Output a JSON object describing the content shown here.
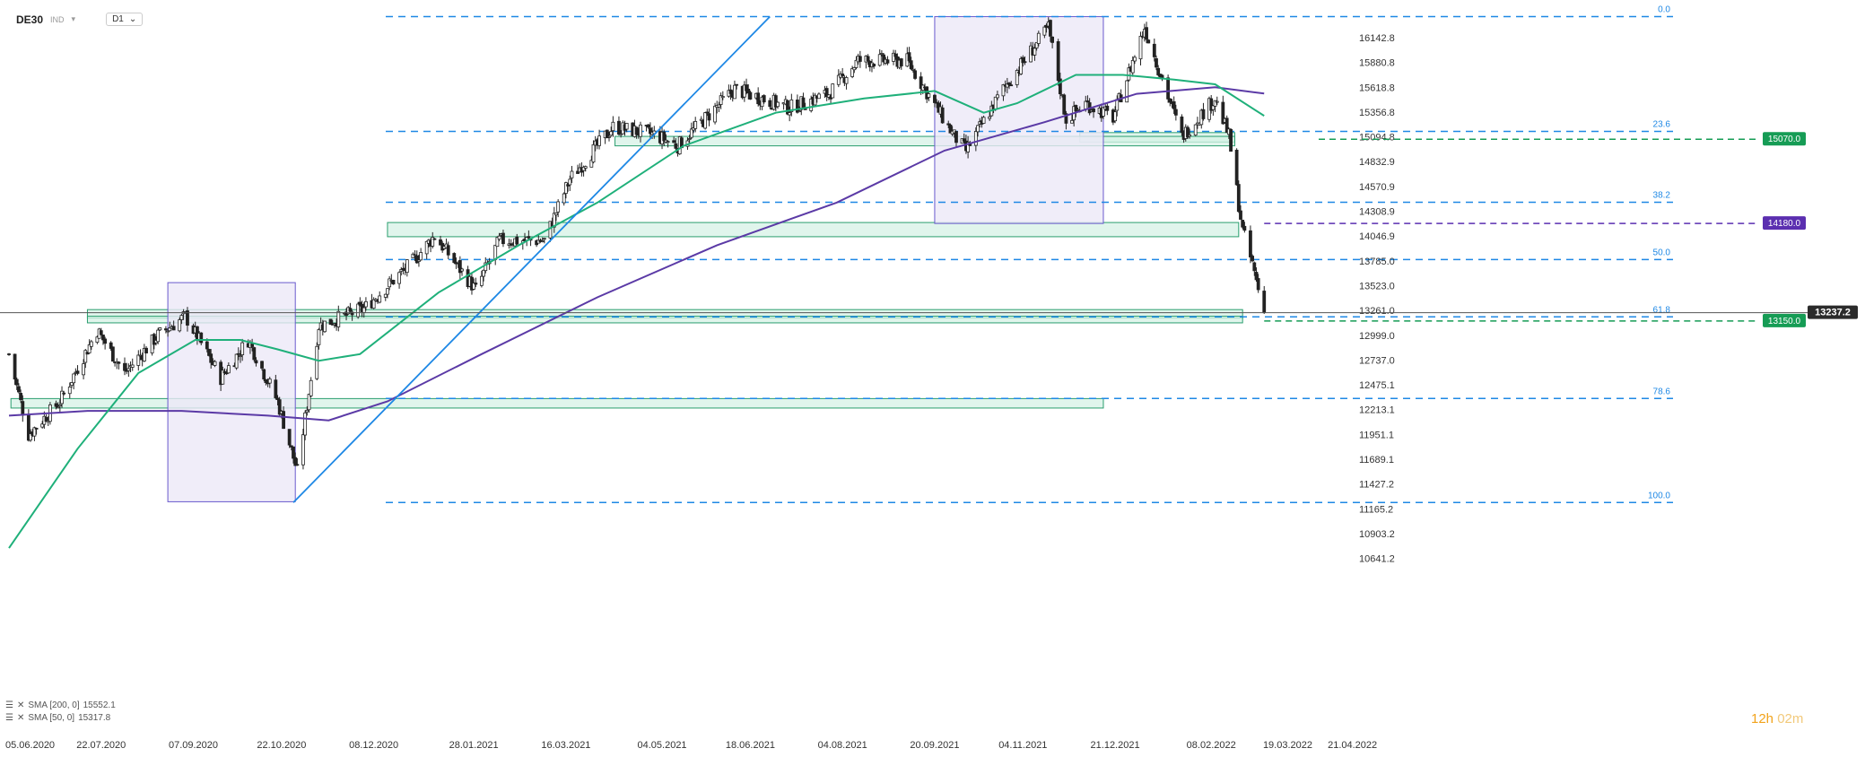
{
  "header": {
    "symbol": "DE30",
    "symbol_sub": "IND",
    "timeframe": "D1"
  },
  "legend": [
    {
      "label": "SMA [200, 0]",
      "value": "15552.1"
    },
    {
      "label": "SMA [50, 0]",
      "value": "15317.8"
    }
  ],
  "timer": {
    "hours": "12h",
    "minutes": "02m"
  },
  "colors": {
    "up": "#2e9e6e",
    "down": "#d04040",
    "sma200": "#5b3aa6",
    "sma50": "#1fb07a",
    "fib": "#1e88e5",
    "zone_fill": "#d6f2e6",
    "zone_border": "#2a9e6e",
    "box_fill": "#ece8f7",
    "box_border": "#6a5acd",
    "tag_green": "#169c55",
    "tag_purple": "#5b2fb0",
    "tag_dark": "#2b2b2b"
  },
  "chart_data": {
    "type": "candlestick",
    "yticks": [
      "16142.8",
      "15880.8",
      "15618.8",
      "15356.8",
      "15094.8",
      "14832.9",
      "14570.9",
      "14308.9",
      "14046.9",
      "13785.0",
      "13523.0",
      "13261.0",
      "12999.0",
      "12737.0",
      "12475.1",
      "12213.1",
      "11951.1",
      "11689.1",
      "11427.2",
      "11165.2",
      "10903.2",
      "10641.2"
    ],
    "xticks": [
      "05.06.2020",
      "22.07.2020",
      "07.09.2020",
      "22.10.2020",
      "08.12.2020",
      "28.01.2021",
      "16.03.2021",
      "04.05.2021",
      "18.06.2021",
      "04.08.2021",
      "20.09.2021",
      "04.11.2021",
      "21.12.2021",
      "08.02.2022",
      "19.03.2022",
      "21.04.2022"
    ],
    "fib_levels": [
      {
        "label": "0.0",
        "price": 16365
      },
      {
        "label": "23.6",
        "price": 15153
      },
      {
        "label": "38.2",
        "price": 14404
      },
      {
        "label": "50.0",
        "price": 13799
      },
      {
        "label": "61.8",
        "price": 13193
      },
      {
        "label": "78.6",
        "price": 12331
      },
      {
        "label": "100.0",
        "price": 11232
      }
    ],
    "tags": [
      {
        "label": "15070.0",
        "price": 15070.0,
        "style": "green"
      },
      {
        "label": "14180.0",
        "price": 14180.0,
        "style": "purple"
      },
      {
        "label": "13237.2",
        "price": 13237.2,
        "style": "dark"
      },
      {
        "label": "13150.0",
        "price": 13150.0,
        "style": "green"
      }
    ],
    "zones": [
      {
        "x1": "2021-12-03",
        "x2": "2022-02-20",
        "lo": 15040,
        "hi": 15140
      },
      {
        "x1": "2021-04-10",
        "x2": "2022-02-20",
        "lo": 15000,
        "hi": 15100
      },
      {
        "x1": "2020-12-15",
        "x2": "2022-02-22",
        "lo": 14040,
        "hi": 14190
      },
      {
        "x1": "2020-07-15",
        "x2": "2022-02-24",
        "lo": 13180,
        "hi": 13270
      },
      {
        "x1": "2020-07-15",
        "x2": "2022-02-24",
        "lo": 13130,
        "hi": 13200
      },
      {
        "x1": "2020-06-06",
        "x2": "2021-12-15",
        "lo": 12230,
        "hi": 12330
      }
    ],
    "boxes": [
      {
        "x1": "2020-08-25",
        "x2": "2020-10-29",
        "lo": 11240,
        "hi": 13555
      },
      {
        "x1": "2021-09-20",
        "x2": "2021-12-15",
        "lo": 14180,
        "hi": 16365
      }
    ],
    "trendline": [
      {
        "date": "2020-10-28",
        "price": 11232
      },
      {
        "date": "2021-06-28",
        "price": 16365
      }
    ],
    "candles_summary": [
      {
        "date": "2020-06-05",
        "close": 12800
      },
      {
        "date": "2020-06-15",
        "close": 11950
      },
      {
        "date": "2020-07-01",
        "close": 12300
      },
      {
        "date": "2020-07-20",
        "close": 13050
      },
      {
        "date": "2020-08-03",
        "close": 12600
      },
      {
        "date": "2020-08-20",
        "close": 13000
      },
      {
        "date": "2020-09-03",
        "close": 13200
      },
      {
        "date": "2020-09-21",
        "close": 12550
      },
      {
        "date": "2020-10-05",
        "close": 12950
      },
      {
        "date": "2020-10-20",
        "close": 12300
      },
      {
        "date": "2020-10-30",
        "close": 11560
      },
      {
        "date": "2020-11-10",
        "close": 13100
      },
      {
        "date": "2020-12-03",
        "close": 13280
      },
      {
        "date": "2020-12-28",
        "close": 13780
      },
      {
        "date": "2021-01-08",
        "close": 14050
      },
      {
        "date": "2021-01-29",
        "close": 13480
      },
      {
        "date": "2021-02-10",
        "close": 14000
      },
      {
        "date": "2021-03-05",
        "close": 14000
      },
      {
        "date": "2021-03-18",
        "close": 14650
      },
      {
        "date": "2021-04-09",
        "close": 15200
      },
      {
        "date": "2021-04-30",
        "close": 15120
      },
      {
        "date": "2021-05-12",
        "close": 15000
      },
      {
        "date": "2021-06-10",
        "close": 15600
      },
      {
        "date": "2021-07-08",
        "close": 15400
      },
      {
        "date": "2021-07-28",
        "close": 15550
      },
      {
        "date": "2021-08-12",
        "close": 15900
      },
      {
        "date": "2021-09-06",
        "close": 15900
      },
      {
        "date": "2021-09-30",
        "close": 15100
      },
      {
        "date": "2021-10-06",
        "close": 14950
      },
      {
        "date": "2021-10-25",
        "close": 15600
      },
      {
        "date": "2021-11-17",
        "close": 16250
      },
      {
        "date": "2021-11-26",
        "close": 15280
      },
      {
        "date": "2021-12-06",
        "close": 15450
      },
      {
        "date": "2021-12-20",
        "close": 15300
      },
      {
        "date": "2022-01-05",
        "close": 16250
      },
      {
        "date": "2022-01-24",
        "close": 15100
      },
      {
        "date": "2022-02-10",
        "close": 15500
      },
      {
        "date": "2022-02-17",
        "close": 15100
      },
      {
        "date": "2022-02-24",
        "close": 14100
      },
      {
        "date": "2022-03-01",
        "close": 13750
      },
      {
        "date": "2022-03-07",
        "close": 13237.2
      }
    ],
    "sma50_points": [
      {
        "date": "2020-06-05",
        "price": 10750
      },
      {
        "date": "2020-07-10",
        "price": 11800
      },
      {
        "date": "2020-08-10",
        "price": 12600
      },
      {
        "date": "2020-09-08",
        "price": 12950
      },
      {
        "date": "2020-10-01",
        "price": 12950
      },
      {
        "date": "2020-10-20",
        "price": 12850
      },
      {
        "date": "2020-11-10",
        "price": 12730
      },
      {
        "date": "2020-12-01",
        "price": 12800
      },
      {
        "date": "2021-01-10",
        "price": 13450
      },
      {
        "date": "2021-02-20",
        "price": 13950
      },
      {
        "date": "2021-04-01",
        "price": 14400
      },
      {
        "date": "2021-05-15",
        "price": 15000
      },
      {
        "date": "2021-07-01",
        "price": 15350
      },
      {
        "date": "2021-08-15",
        "price": 15500
      },
      {
        "date": "2021-09-20",
        "price": 15580
      },
      {
        "date": "2021-10-15",
        "price": 15350
      },
      {
        "date": "2021-11-01",
        "price": 15450
      },
      {
        "date": "2021-12-01",
        "price": 15750
      },
      {
        "date": "2021-12-25",
        "price": 15750
      },
      {
        "date": "2022-01-20",
        "price": 15700
      },
      {
        "date": "2022-02-10",
        "price": 15650
      },
      {
        "date": "2022-03-07",
        "price": 15317.8
      }
    ],
    "sma200_points": [
      {
        "date": "2020-06-05",
        "price": 12150
      },
      {
        "date": "2020-07-15",
        "price": 12200
      },
      {
        "date": "2020-09-01",
        "price": 12200
      },
      {
        "date": "2020-10-15",
        "price": 12150
      },
      {
        "date": "2020-11-15",
        "price": 12100
      },
      {
        "date": "2020-12-15",
        "price": 12300
      },
      {
        "date": "2021-02-01",
        "price": 12800
      },
      {
        "date": "2021-04-01",
        "price": 13400
      },
      {
        "date": "2021-06-01",
        "price": 13950
      },
      {
        "date": "2021-08-01",
        "price": 14400
      },
      {
        "date": "2021-09-25",
        "price": 14950
      },
      {
        "date": "2021-11-15",
        "price": 15250
      },
      {
        "date": "2022-01-01",
        "price": 15550
      },
      {
        "date": "2022-02-10",
        "price": 15620
      },
      {
        "date": "2022-03-07",
        "price": 15552.1
      }
    ]
  }
}
